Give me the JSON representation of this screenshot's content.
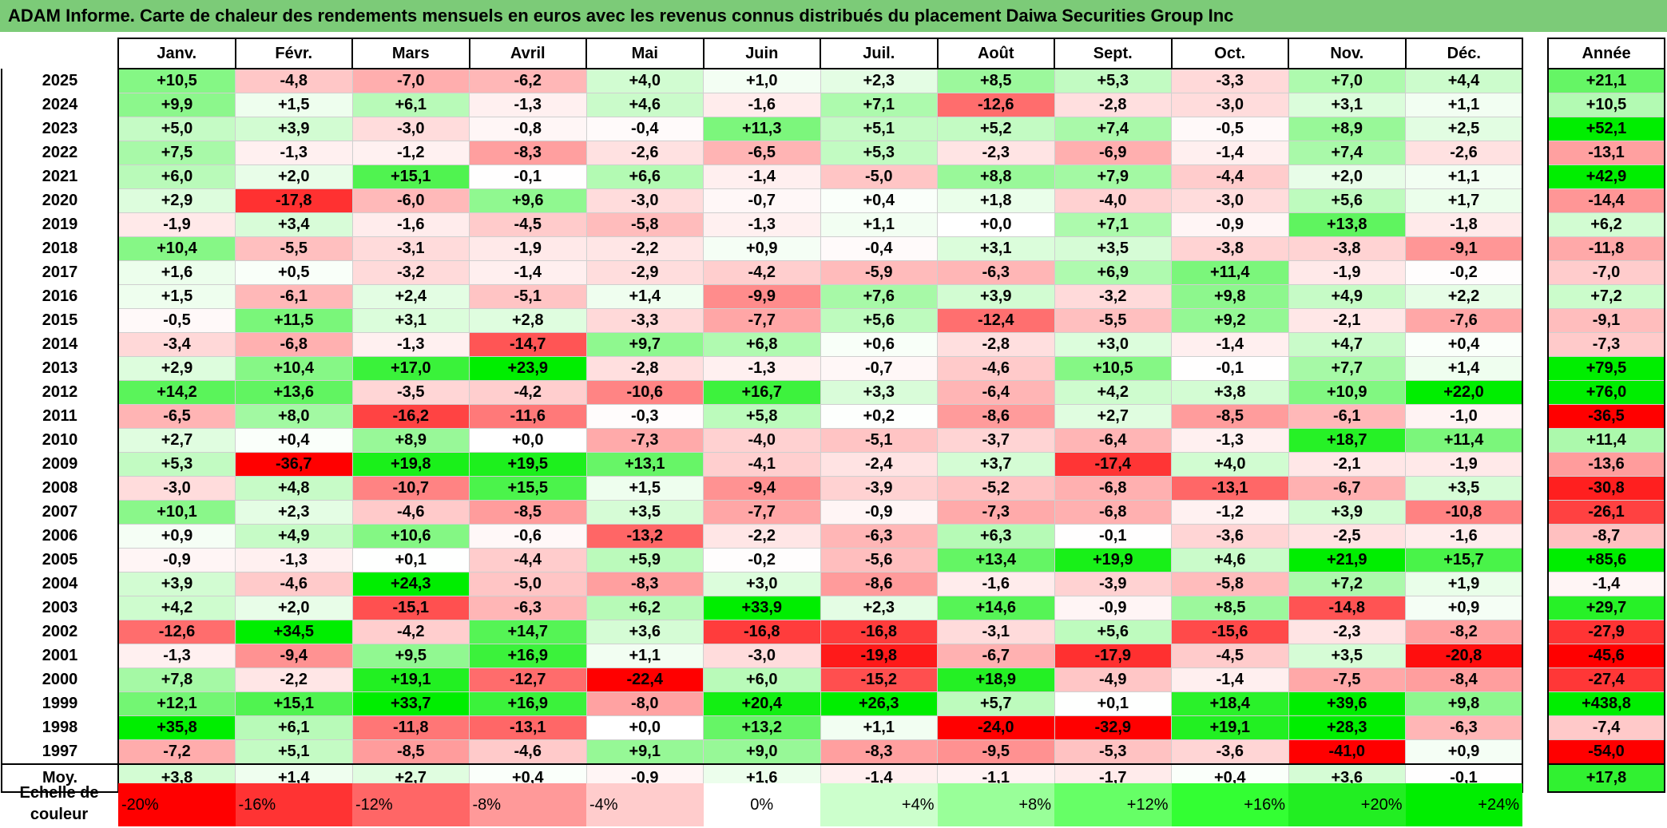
{
  "title": "ADAM Informe. Carte de chaleur des rendements mensuels en euros avec les revenus connus distribués du placement Daiwa Securities Group Inc",
  "chart_data": {
    "type": "heatmap",
    "columns": [
      "Janv.",
      "Févr.",
      "Mars",
      "Avril",
      "Mai",
      "Juin",
      "Juil.",
      "Août",
      "Sept.",
      "Oct.",
      "Nov.",
      "Déc."
    ],
    "year_column": "Année",
    "average_label": "Moy.",
    "rows": [
      {
        "year": "2025",
        "values": [
          "+10,5",
          "-4,8",
          "-7,0",
          "-6,2",
          "+4,0",
          "+1,0",
          "+2,3",
          "+8,5",
          "+5,3",
          "-3,3",
          "+7,0",
          "+4,4"
        ],
        "annual": "+21,1"
      },
      {
        "year": "2024",
        "values": [
          "+9,9",
          "+1,5",
          "+6,1",
          "-1,3",
          "+4,6",
          "-1,6",
          "+7,1",
          "-12,6",
          "-2,8",
          "-3,0",
          "+3,1",
          "+1,1"
        ],
        "annual": "+10,5"
      },
      {
        "year": "2023",
        "values": [
          "+5,0",
          "+3,9",
          "-3,0",
          "-0,8",
          "-0,4",
          "+11,3",
          "+5,1",
          "+5,2",
          "+7,4",
          "-0,5",
          "+8,9",
          "+2,5"
        ],
        "annual": "+52,1"
      },
      {
        "year": "2022",
        "values": [
          "+7,5",
          "-1,3",
          "-1,2",
          "-8,3",
          "-2,6",
          "-6,5",
          "+5,3",
          "-2,3",
          "-6,9",
          "-1,4",
          "+7,4",
          "-2,6"
        ],
        "annual": "-13,1"
      },
      {
        "year": "2021",
        "values": [
          "+6,0",
          "+2,0",
          "+15,1",
          "-0,1",
          "+6,6",
          "-1,4",
          "-5,0",
          "+8,8",
          "+7,9",
          "-4,4",
          "+2,0",
          "+1,1"
        ],
        "annual": "+42,9"
      },
      {
        "year": "2020",
        "values": [
          "+2,9",
          "-17,8",
          "-6,0",
          "+9,6",
          "-3,0",
          "-0,7",
          "+0,4",
          "+1,8",
          "-4,0",
          "-3,0",
          "+5,6",
          "+1,7"
        ],
        "annual": "-14,4"
      },
      {
        "year": "2019",
        "values": [
          "-1,9",
          "+3,4",
          "-1,6",
          "-4,5",
          "-5,8",
          "-1,3",
          "+1,1",
          "+0,0",
          "+7,1",
          "-0,9",
          "+13,8",
          "-1,8"
        ],
        "annual": "+6,2"
      },
      {
        "year": "2018",
        "values": [
          "+10,4",
          "-5,5",
          "-3,1",
          "-1,9",
          "-2,2",
          "+0,9",
          "-0,4",
          "+3,1",
          "+3,5",
          "-3,8",
          "-3,8",
          "-9,1"
        ],
        "annual": "-11,8"
      },
      {
        "year": "2017",
        "values": [
          "+1,6",
          "+0,5",
          "-3,2",
          "-1,4",
          "-2,9",
          "-4,2",
          "-5,9",
          "-6,3",
          "+6,9",
          "+11,4",
          "-1,9",
          "-0,2"
        ],
        "annual": "-7,0"
      },
      {
        "year": "2016",
        "values": [
          "+1,5",
          "-6,1",
          "+2,4",
          "-5,1",
          "+1,4",
          "-9,9",
          "+7,6",
          "+3,9",
          "-3,2",
          "+9,8",
          "+4,9",
          "+2,2"
        ],
        "annual": "+7,2"
      },
      {
        "year": "2015",
        "values": [
          "-0,5",
          "+11,5",
          "+3,1",
          "+2,8",
          "-3,3",
          "-7,7",
          "+5,6",
          "-12,4",
          "-5,5",
          "+9,2",
          "-2,1",
          "-7,6"
        ],
        "annual": "-9,1"
      },
      {
        "year": "2014",
        "values": [
          "-3,4",
          "-6,8",
          "-1,3",
          "-14,7",
          "+9,7",
          "+6,8",
          "+0,6",
          "-2,8",
          "+3,0",
          "-1,4",
          "+4,7",
          "+0,4"
        ],
        "annual": "-7,3"
      },
      {
        "year": "2013",
        "values": [
          "+2,9",
          "+10,4",
          "+17,0",
          "+23,9",
          "-2,8",
          "-1,3",
          "-0,7",
          "-4,6",
          "+10,5",
          "-0,1",
          "+7,7",
          "+1,4"
        ],
        "annual": "+79,5"
      },
      {
        "year": "2012",
        "values": [
          "+14,2",
          "+13,6",
          "-3,5",
          "-4,2",
          "-10,6",
          "+16,7",
          "+3,3",
          "-6,4",
          "+4,2",
          "+3,8",
          "+10,9",
          "+22,0"
        ],
        "annual": "+76,0"
      },
      {
        "year": "2011",
        "values": [
          "-6,5",
          "+8,0",
          "-16,2",
          "-11,6",
          "-0,3",
          "+5,8",
          "+0,2",
          "-8,6",
          "+2,7",
          "-8,5",
          "-6,1",
          "-1,0"
        ],
        "annual": "-36,5"
      },
      {
        "year": "2010",
        "values": [
          "+2,7",
          "+0,4",
          "+8,9",
          "+0,0",
          "-7,3",
          "-4,0",
          "-5,1",
          "-3,7",
          "-6,4",
          "-1,3",
          "+18,7",
          "+11,4"
        ],
        "annual": "+11,4"
      },
      {
        "year": "2009",
        "values": [
          "+5,3",
          "-36,7",
          "+19,8",
          "+19,5",
          "+13,1",
          "-4,1",
          "-2,4",
          "+3,7",
          "-17,4",
          "+4,0",
          "-2,1",
          "-1,9"
        ],
        "annual": "-13,6"
      },
      {
        "year": "2008",
        "values": [
          "-3,0",
          "+4,8",
          "-10,7",
          "+15,5",
          "+1,5",
          "-9,4",
          "-3,9",
          "-5,2",
          "-6,8",
          "-13,1",
          "-6,7",
          "+3,5"
        ],
        "annual": "-30,8"
      },
      {
        "year": "2007",
        "values": [
          "+10,1",
          "+2,3",
          "-4,6",
          "-8,5",
          "+3,5",
          "-7,7",
          "-0,9",
          "-7,3",
          "-6,8",
          "-1,2",
          "+3,9",
          "-10,8"
        ],
        "annual": "-26,1"
      },
      {
        "year": "2006",
        "values": [
          "+0,9",
          "+4,9",
          "+10,6",
          "-0,6",
          "-13,2",
          "-2,2",
          "-6,3",
          "+6,3",
          "-0,1",
          "-3,6",
          "-2,5",
          "-1,6"
        ],
        "annual": "-8,7"
      },
      {
        "year": "2005",
        "values": [
          "-0,9",
          "-1,3",
          "+0,1",
          "-4,4",
          "+5,9",
          "-0,2",
          "-5,6",
          "+13,4",
          "+19,9",
          "+4,6",
          "+21,9",
          "+15,7"
        ],
        "annual": "+85,6"
      },
      {
        "year": "2004",
        "values": [
          "+3,9",
          "-4,6",
          "+24,3",
          "-5,0",
          "-8,3",
          "+3,0",
          "-8,6",
          "-1,6",
          "-3,9",
          "-5,8",
          "+7,2",
          "+1,9"
        ],
        "annual": "-1,4"
      },
      {
        "year": "2003",
        "values": [
          "+4,2",
          "+2,0",
          "-15,1",
          "-6,3",
          "+6,2",
          "+33,9",
          "+2,3",
          "+14,6",
          "-0,9",
          "+8,5",
          "-14,8",
          "+0,9"
        ],
        "annual": "+29,7"
      },
      {
        "year": "2002",
        "values": [
          "-12,6",
          "+34,5",
          "-4,2",
          "+14,7",
          "+3,6",
          "-16,8",
          "-16,8",
          "-3,1",
          "+5,6",
          "-15,6",
          "-2,3",
          "-8,2"
        ],
        "annual": "-27,9"
      },
      {
        "year": "2001",
        "values": [
          "-1,3",
          "-9,4",
          "+9,5",
          "+16,9",
          "+1,1",
          "-3,0",
          "-19,8",
          "-6,7",
          "-17,9",
          "-4,5",
          "+3,5",
          "-20,8"
        ],
        "annual": "-45,6"
      },
      {
        "year": "2000",
        "values": [
          "+7,8",
          "-2,2",
          "+19,1",
          "-12,7",
          "-22,4",
          "+6,0",
          "-15,2",
          "+18,9",
          "-4,9",
          "-1,4",
          "-7,5",
          "-8,4"
        ],
        "annual": "-27,4"
      },
      {
        "year": "1999",
        "values": [
          "+12,1",
          "+15,1",
          "+33,7",
          "+16,9",
          "-8,0",
          "+20,4",
          "+26,3",
          "+5,7",
          "+0,1",
          "+18,4",
          "+39,6",
          "+9,8"
        ],
        "annual": "+438,8"
      },
      {
        "year": "1998",
        "values": [
          "+35,8",
          "+6,1",
          "-11,8",
          "-13,1",
          "+0,0",
          "+13,2",
          "+1,1",
          "-24,0",
          "-32,9",
          "+19,1",
          "+28,3",
          "-6,3"
        ],
        "annual": "-7,4"
      },
      {
        "year": "1997",
        "values": [
          "-7,2",
          "+5,1",
          "-8,5",
          "-4,6",
          "+9,1",
          "+9,0",
          "-8,3",
          "-9,5",
          "-5,3",
          "-3,6",
          "-41,0",
          "+0,9"
        ],
        "annual": "-54,0"
      }
    ],
    "average": {
      "values": [
        "+3,8",
        "+1,4",
        "+2,7",
        "+0,4",
        "-0,9",
        "+1,6",
        "-1,4",
        "-1,1",
        "-1,7",
        "+0,4",
        "+3,6",
        "-0,1"
      ],
      "annual": "+17,8"
    },
    "scale": {
      "label": "Echelle de couleur",
      "steps": [
        "-20%",
        "-16%",
        "-12%",
        "-8%",
        "-4%",
        "0%",
        "+4%",
        "+8%",
        "+12%",
        "+16%",
        "+20%",
        "+24%"
      ],
      "colors": [
        "#ff0000",
        "#ff3333",
        "#ff6666",
        "#ff9999",
        "#ffcccc",
        "#ffffff",
        "#ccffcc",
        "#99ff99",
        "#66ff66",
        "#33ff33",
        "#22ee22",
        "#00ee00"
      ]
    }
  }
}
